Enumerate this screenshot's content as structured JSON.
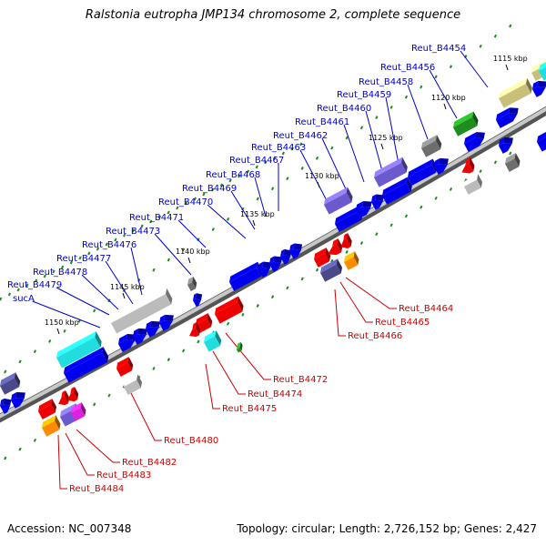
{
  "title": "Ralstonia eutropha JMP134 chromosome 2, complete sequence",
  "footer": {
    "accession": "Accession: NC_007348",
    "topology": "Topology: circular; Length: 2,726,152 bp; Genes: 2,427"
  },
  "colors": {
    "backbone": "#8c8c8c",
    "forward_label": "#0000cc",
    "reverse_label": "#cc0000",
    "blue": "#0000ee",
    "red": "#ee0000",
    "cyan": "#22dddd",
    "gray": "#bbbbbb",
    "darkgray": "#6e6e6e",
    "khaki": "#c8c07a",
    "green": "#1e8c1e",
    "purple": "#6a5acd",
    "navy": "#4a4a8a",
    "orange": "#ff8c00",
    "magenta": "#dd22dd",
    "dot": "#1e8c1e"
  },
  "kbp_ticks": [
    "1115 kbp",
    "1120 kbp",
    "1125 kbp",
    "1130 kbp",
    "1135 kbp",
    "1140 kbp",
    "1145 kbp",
    "1150 kbp"
  ],
  "forward_labels": [
    "Reut_B4454",
    "Reut_B4456",
    "Reut_B4458",
    "Reut_B4459",
    "Reut_B4460",
    "Reut_B4461",
    "Reut_B4462",
    "Reut_B4463",
    "Reut_B4467",
    "Reut_B4468",
    "Reut_B4469",
    "Reut_B4470",
    "Reut_B4471",
    "Reut_B4473",
    "Reut_B4476",
    "Reut_B4477",
    "Reut_B4478",
    "Reut_B4479",
    "sucA"
  ],
  "reverse_labels": [
    "Reut_B4464",
    "Reut_B4465",
    "Reut_B4466",
    "Reut_B4472",
    "Reut_B4474",
    "Reut_B4475",
    "Reut_B4480",
    "Reut_B4482",
    "Reut_B4483",
    "Reut_B4484"
  ]
}
